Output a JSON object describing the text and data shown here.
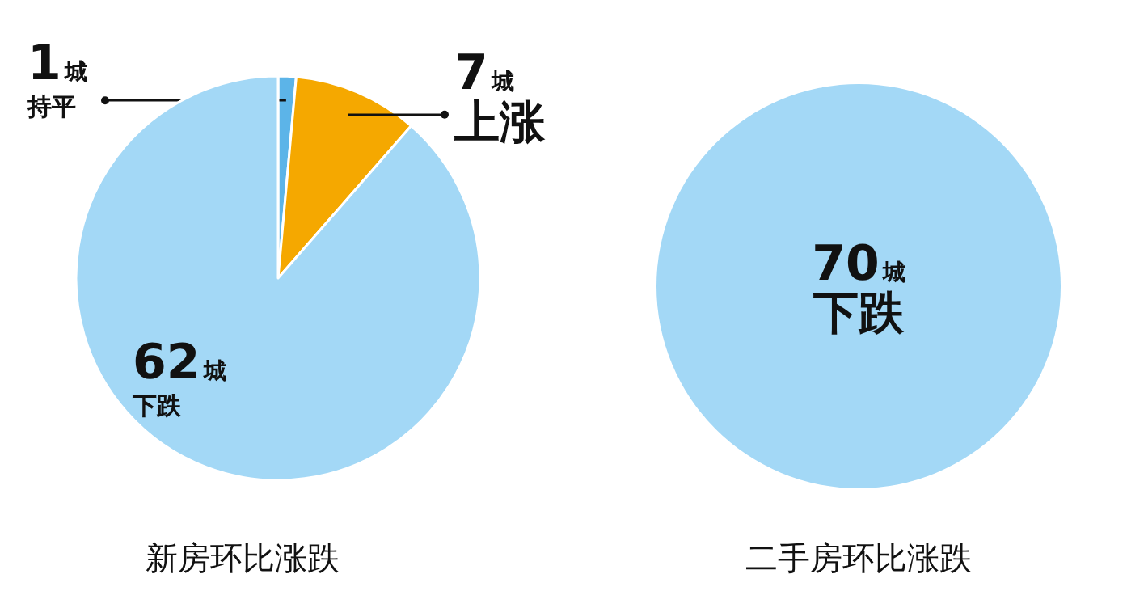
{
  "chart_data": [
    {
      "type": "pie",
      "title": "新房环比涨跌",
      "categories": [
        "持平",
        "上涨",
        "下跌"
      ],
      "values": [
        1,
        7,
        62
      ],
      "value_labels": [
        "1城",
        "7城",
        "62城"
      ],
      "colors": [
        "#5cb4e8",
        "#f5a800",
        "#a3d8f6"
      ]
    },
    {
      "type": "pie",
      "title": "二手房环比涨跌",
      "categories": [
        "下跌"
      ],
      "values": [
        70
      ],
      "value_labels": [
        "70城"
      ],
      "colors": [
        "#a3d8f6"
      ]
    }
  ]
}
